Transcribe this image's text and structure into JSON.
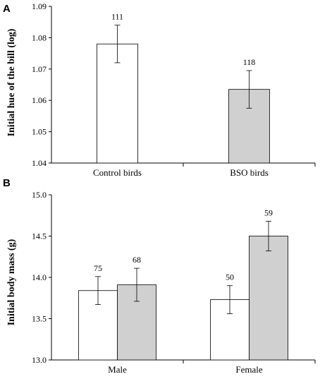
{
  "chart_data": [
    {
      "type": "bar",
      "panel": "A",
      "ylabel": "Initial hue of the bill (log)",
      "ylim": [
        1.04,
        1.09
      ],
      "yticks": [
        "1.04",
        "1.05",
        "1.06",
        "1.07",
        "1.08",
        "1.09"
      ],
      "categories": [
        "Control birds",
        "BSO birds"
      ],
      "values": [
        1.078,
        1.0635
      ],
      "errors": [
        0.006,
        0.006
      ],
      "labels": [
        "111",
        "118"
      ],
      "colors": [
        "#ffffff",
        "#d0d0d0"
      ]
    },
    {
      "type": "bar",
      "panel": "B",
      "ylabel": "Initial body mass (g)",
      "ylim": [
        13.0,
        15.0
      ],
      "yticks": [
        "13.0",
        "13.5",
        "14.0",
        "14.5",
        "15.0"
      ],
      "categories": [
        "Male",
        "Female"
      ],
      "series": [
        {
          "values": [
            13.84,
            13.73
          ],
          "errors": [
            0.17,
            0.17
          ],
          "labels": [
            "75",
            "50"
          ],
          "color": "#ffffff"
        },
        {
          "values": [
            13.91,
            14.5
          ],
          "errors": [
            0.2,
            0.18
          ],
          "labels": [
            "68",
            "59"
          ],
          "color": "#d0d0d0"
        }
      ]
    }
  ]
}
